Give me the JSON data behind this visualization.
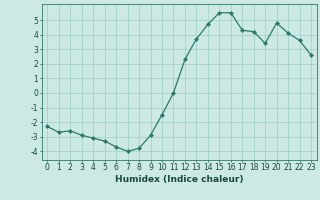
{
  "x": [
    0,
    1,
    2,
    3,
    4,
    5,
    6,
    7,
    8,
    9,
    10,
    11,
    12,
    13,
    14,
    15,
    16,
    17,
    18,
    19,
    20,
    21,
    22,
    23
  ],
  "y": [
    -2.3,
    -2.7,
    -2.6,
    -2.9,
    -3.1,
    -3.3,
    -3.7,
    -4.0,
    -3.8,
    -2.9,
    -1.5,
    0.0,
    2.3,
    3.7,
    4.7,
    5.5,
    5.5,
    4.3,
    4.2,
    3.4,
    4.8,
    4.1,
    3.6,
    2.6
  ],
  "line_color": "#2d7a6a",
  "marker": "D",
  "marker_size": 2.0,
  "bg_color": "#cce9e4",
  "grid_color": "#9ecfc7",
  "xlabel": "Humidex (Indice chaleur)",
  "xlim": [
    -0.5,
    23.5
  ],
  "ylim": [
    -4.6,
    6.1
  ],
  "yticks": [
    -4,
    -3,
    -2,
    -1,
    0,
    1,
    2,
    3,
    4,
    5
  ],
  "xticks": [
    0,
    1,
    2,
    3,
    4,
    5,
    6,
    7,
    8,
    9,
    10,
    11,
    12,
    13,
    14,
    15,
    16,
    17,
    18,
    19,
    20,
    21,
    22,
    23
  ],
  "label_fontsize": 6.5,
  "tick_fontsize": 5.5
}
